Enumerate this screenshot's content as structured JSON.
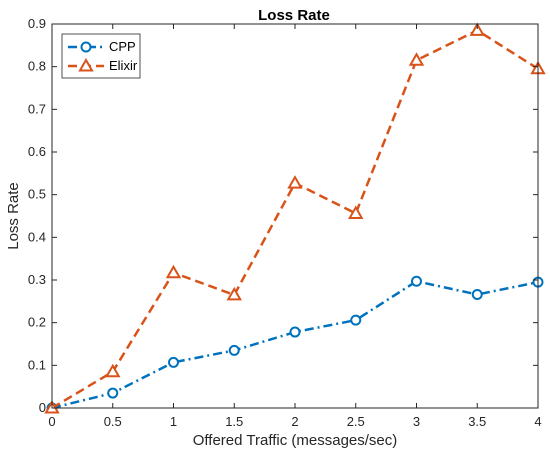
{
  "chart_data": {
    "type": "line",
    "title": "Loss Rate",
    "xlabel": "Offered Traffic (messages/sec)",
    "ylabel": "Loss Rate",
    "xlim": [
      0,
      4
    ],
    "ylim": [
      0,
      0.9
    ],
    "xticks": [
      "0",
      "0.5",
      "1",
      "1.5",
      "2",
      "2.5",
      "3",
      "3.5",
      "4"
    ],
    "yticks": [
      "0",
      "0.1",
      "0.2",
      "0.3",
      "0.4",
      "0.5",
      "0.6",
      "0.7",
      "0.8",
      "0.9"
    ],
    "x": [
      0,
      0.5,
      1,
      1.5,
      2,
      2.5,
      3,
      3.5,
      4
    ],
    "grid": false,
    "legend_position": "top-left",
    "series": [
      {
        "name": "CPP",
        "values": [
          0.0,
          0.035,
          0.107,
          0.135,
          0.178,
          0.206,
          0.297,
          0.266,
          0.295
        ],
        "color": "#0072BD",
        "marker": "circle",
        "line_style": "dash-dot"
      },
      {
        "name": "Elixir",
        "values": [
          0.0,
          0.085,
          0.317,
          0.265,
          0.527,
          0.456,
          0.815,
          0.885,
          0.795
        ],
        "color": "#D95319",
        "marker": "triangle",
        "line_style": "dashed"
      }
    ]
  }
}
